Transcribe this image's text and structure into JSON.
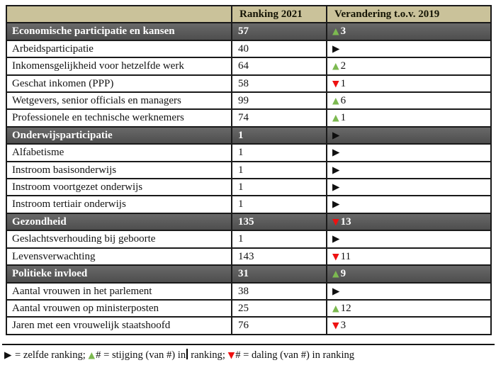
{
  "colors": {
    "header_bg": "#cac29a",
    "section_bg": "#595959",
    "section_text": "#ffffff",
    "body_text": "#131313",
    "border": "#1a1a1a",
    "up": "#7cb950",
    "down": "#ee1111",
    "same": "#111111"
  },
  "icons": {
    "up-triangle": "▲",
    "down-triangle": "▼",
    "same-triangle": "▶"
  },
  "table": {
    "headers": [
      "",
      "Ranking 2021",
      "Verandering t.o.v. 2019"
    ],
    "rows": [
      {
        "label": "Economische participatie en kansen",
        "ranking": "57",
        "change_dir": "up",
        "change_value": "3",
        "section": true
      },
      {
        "label": "Arbeidsparticipatie",
        "ranking": "40",
        "change_dir": "same",
        "change_value": "",
        "section": false
      },
      {
        "label": "Inkomensgelijkheid voor hetzelfde werk",
        "ranking": "64",
        "change_dir": "up",
        "change_value": "2",
        "section": false
      },
      {
        "label": "Geschat inkomen (PPP)",
        "ranking": "58",
        "change_dir": "down",
        "change_value": "1",
        "section": false
      },
      {
        "label": "Wetgevers, senior officials en managers",
        "ranking": "99",
        "change_dir": "up",
        "change_value": "6",
        "section": false
      },
      {
        "label": "Professionele en technische werknemers",
        "ranking": "74",
        "change_dir": "up",
        "change_value": "1",
        "section": false
      },
      {
        "label": "Onderwijsparticipatie",
        "ranking": "1",
        "change_dir": "same",
        "change_value": "",
        "section": true
      },
      {
        "label": "Alfabetisme",
        "ranking": "1",
        "change_dir": "same",
        "change_value": "",
        "section": false
      },
      {
        "label": "Instroom basisonderwijs",
        "ranking": "1",
        "change_dir": "same",
        "change_value": "",
        "section": false
      },
      {
        "label": "Instroom voortgezet onderwijs",
        "ranking": "1",
        "change_dir": "same",
        "change_value": "",
        "section": false
      },
      {
        "label": "Instroom tertiair onderwijs",
        "ranking": "1",
        "change_dir": "same",
        "change_value": "",
        "section": false
      },
      {
        "label": "Gezondheid",
        "ranking": "135",
        "change_dir": "down",
        "change_value": "13",
        "section": true
      },
      {
        "label": "Geslachtsverhouding bij geboorte",
        "ranking": "1",
        "change_dir": "same",
        "change_value": "",
        "section": false
      },
      {
        "label": "Levensverwachting",
        "ranking": "143",
        "change_dir": "down",
        "change_value": "11",
        "section": false
      },
      {
        "label": "Politieke invloed",
        "ranking": "31",
        "change_dir": "up",
        "change_value": "9",
        "section": true
      },
      {
        "label": "Aantal vrouwen in het parlement",
        "ranking": "38",
        "change_dir": "same",
        "change_value": "",
        "section": false
      },
      {
        "label": "Aantal vrouwen op ministerposten",
        "ranking": "25",
        "change_dir": "up",
        "change_value": "12",
        "section": false
      },
      {
        "label": "Jaren met een vrouwelijk staatshoofd",
        "ranking": "76",
        "change_dir": "down",
        "change_value": "3",
        "section": false
      }
    ]
  },
  "legend": {
    "segments": [
      {
        "type": "icon",
        "name": "same-triangle"
      },
      {
        "type": "text",
        "value": " = zelfde ranking; "
      },
      {
        "type": "icon",
        "name": "up-triangle"
      },
      {
        "type": "text",
        "value": "# = stijging (van #) in"
      },
      {
        "type": "cursor"
      },
      {
        "type": "text",
        "value": " ranking; "
      },
      {
        "type": "icon",
        "name": "down-triangle"
      },
      {
        "type": "text",
        "value": "# = daling (van #) in ranking"
      }
    ]
  }
}
